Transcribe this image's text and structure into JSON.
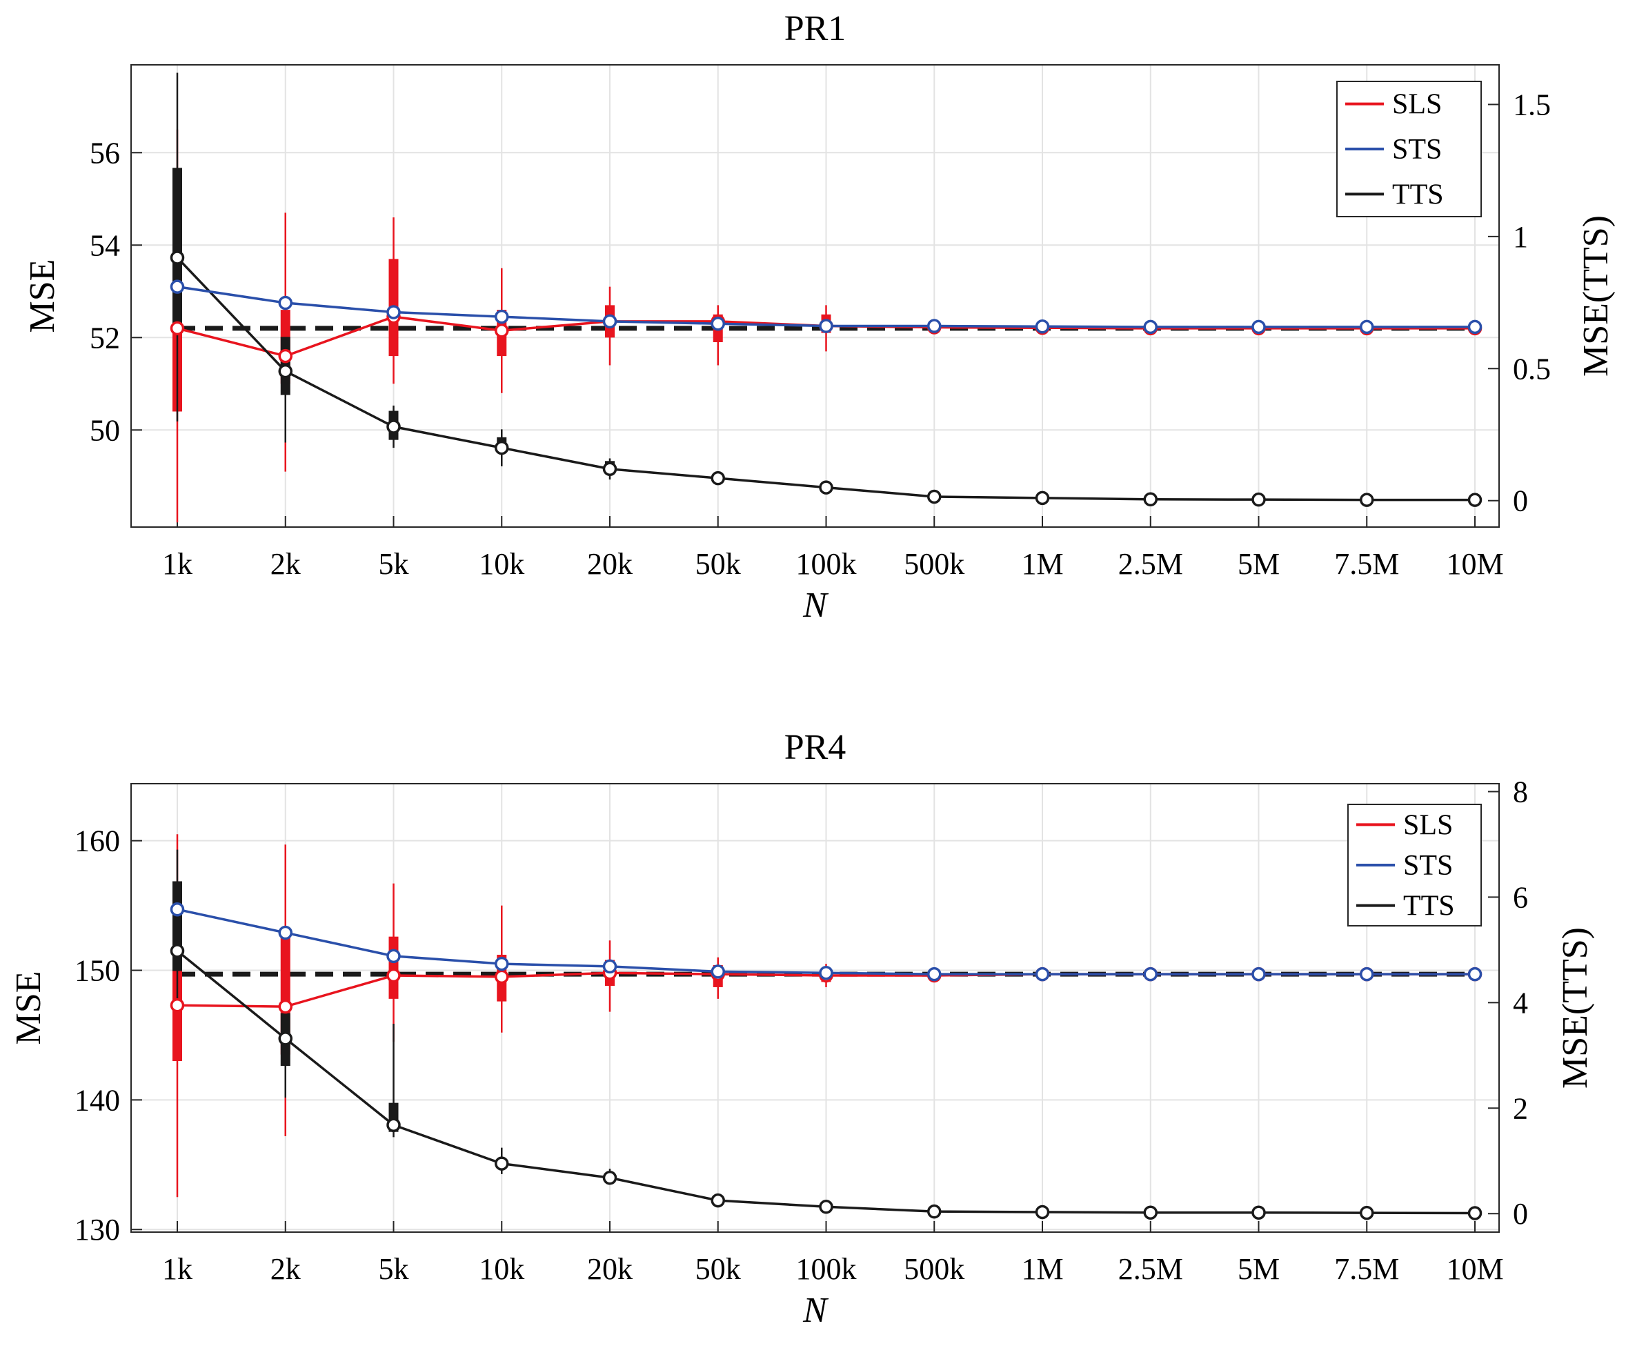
{
  "chart_data": [
    {
      "type": "line",
      "title": "PR1",
      "xlabel": "N",
      "ylabel": "MSE",
      "ylabel_right": "MSE(TTS)",
      "categories": [
        "1k",
        "2k",
        "5k",
        "10k",
        "20k",
        "50k",
        "100k",
        "500k",
        "1M",
        "2.5M",
        "5M",
        "7.5M",
        "10M"
      ],
      "ylim": [
        47.9,
        57.9
      ],
      "yticks": [
        50,
        52,
        54,
        56
      ],
      "ylim_right": [
        -0.1,
        1.65
      ],
      "yticks_right": [
        0,
        0.5,
        1,
        1.5
      ],
      "yticklabels_right": [
        "0",
        "0.5",
        "1",
        "1.5"
      ],
      "reference_line": 52.2,
      "grid": true,
      "legend_position": "top-right",
      "series": [
        {
          "name": "SLS",
          "color": "#e8141e",
          "axis": "left",
          "values": [
            52.2,
            51.6,
            52.45,
            52.15,
            52.35,
            52.35,
            52.25,
            52.22,
            52.21,
            52.2,
            52.2,
            52.2,
            52.2
          ],
          "whisker": [
            [
              48.0,
              56.5
            ],
            [
              49.1,
              54.7
            ],
            [
              51.0,
              54.6
            ],
            [
              50.8,
              53.5
            ],
            [
              51.4,
              53.1
            ],
            [
              51.4,
              52.7
            ],
            [
              51.7,
              52.7
            ],
            [
              52.1,
              52.3
            ],
            [
              52.15,
              52.25
            ],
            [
              52.15,
              52.25
            ],
            [
              52.15,
              52.25
            ],
            [
              52.15,
              52.25
            ],
            [
              52.15,
              52.25
            ]
          ],
          "box": [
            [
              50.4,
              53.3
            ],
            [
              51.0,
              52.6
            ],
            [
              51.6,
              53.7
            ],
            [
              51.6,
              52.6
            ],
            [
              52.0,
              52.7
            ],
            [
              51.9,
              52.5
            ],
            [
              52.1,
              52.5
            ],
            [
              52.15,
              52.3
            ],
            [
              52.18,
              52.24
            ],
            [
              52.18,
              52.24
            ],
            [
              52.18,
              52.24
            ],
            [
              52.18,
              52.24
            ],
            [
              52.18,
              52.24
            ]
          ]
        },
        {
          "name": "STS",
          "color": "#2a4faa",
          "axis": "left",
          "values": [
            53.1,
            52.75,
            52.55,
            52.45,
            52.35,
            52.3,
            52.25,
            52.25,
            52.24,
            52.23,
            52.23,
            52.23,
            52.23
          ],
          "whisker": [],
          "box": []
        },
        {
          "name": "TTS",
          "color": "#1a1a1a",
          "axis": "right",
          "values": [
            0.92,
            0.49,
            0.28,
            0.2,
            0.12,
            0.085,
            0.05,
            0.015,
            0.01,
            0.005,
            0.004,
            0.003,
            0.003
          ],
          "whisker": [
            [
              0.3,
              1.62
            ],
            [
              0.22,
              0.6
            ],
            [
              0.2,
              0.36
            ],
            [
              0.13,
              0.27
            ],
            [
              0.08,
              0.16
            ],
            [
              0.06,
              0.11
            ],
            [
              0.03,
              0.07
            ],
            [
              0.01,
              0.02
            ],
            [
              0.005,
              0.012
            ],
            [
              0.003,
              0.007
            ],
            [
              0.002,
              0.006
            ],
            [
              0.002,
              0.005
            ],
            [
              0.002,
              0.005
            ]
          ],
          "box": [
            [
              0.65,
              1.26
            ],
            [
              0.4,
              0.62
            ],
            [
              0.23,
              0.34
            ],
            [
              0.18,
              0.24
            ],
            [
              0.1,
              0.15
            ],
            [
              0.07,
              0.1
            ],
            [
              0.04,
              0.06
            ],
            [
              0.012,
              0.018
            ],
            [
              0.008,
              0.012
            ],
            [
              0.004,
              0.006
            ],
            [
              0.003,
              0.005
            ],
            [
              0.003,
              0.004
            ],
            [
              0.003,
              0.004
            ]
          ]
        }
      ]
    },
    {
      "type": "line",
      "title": "PR4",
      "xlabel": "N",
      "ylabel": "MSE",
      "ylabel_right": "MSE(TTS)",
      "categories": [
        "1k",
        "2k",
        "5k",
        "10k",
        "20k",
        "50k",
        "100k",
        "500k",
        "1M",
        "2.5M",
        "5M",
        "7.5M",
        "10M"
      ],
      "ylim": [
        129.8,
        164.4
      ],
      "yticks": [
        130,
        140,
        150,
        160
      ],
      "ylim_right": [
        -0.35,
        8.15
      ],
      "yticks_right": [
        0,
        2,
        4,
        6,
        8
      ],
      "yticklabels_right": [
        "0",
        "2",
        "4",
        "6",
        "8"
      ],
      "reference_line": 149.7,
      "grid": true,
      "legend_position": "top-right",
      "series": [
        {
          "name": "SLS",
          "color": "#e8141e",
          "axis": "left",
          "values": [
            147.3,
            147.2,
            149.6,
            149.5,
            149.8,
            149.7,
            149.6,
            149.6,
            149.7,
            149.7,
            149.7,
            149.7,
            149.7
          ],
          "whisker": [
            [
              132.5,
              160.5
            ],
            [
              137.2,
              159.7
            ],
            [
              144.5,
              156.7
            ],
            [
              145.2,
              155.0
            ],
            [
              146.8,
              152.3
            ],
            [
              147.8,
              151.0
            ],
            [
              148.7,
              150.5
            ],
            [
              149.3,
              150.0
            ],
            [
              149.5,
              149.9
            ],
            [
              149.6,
              149.8
            ],
            [
              149.6,
              149.8
            ],
            [
              149.6,
              149.8
            ],
            [
              149.6,
              149.8
            ]
          ],
          "box": [
            [
              143.0,
              151.5
            ],
            [
              143.5,
              153.0
            ],
            [
              147.8,
              152.6
            ],
            [
              147.6,
              151.2
            ],
            [
              148.8,
              150.8
            ],
            [
              148.7,
              150.4
            ],
            [
              149.1,
              150.2
            ],
            [
              149.4,
              149.9
            ],
            [
              149.6,
              149.8
            ],
            [
              149.62,
              149.78
            ],
            [
              149.62,
              149.78
            ],
            [
              149.62,
              149.78
            ],
            [
              149.62,
              149.78
            ]
          ]
        },
        {
          "name": "STS",
          "color": "#2a4faa",
          "axis": "left",
          "values": [
            154.7,
            152.9,
            151.1,
            150.5,
            150.3,
            149.9,
            149.8,
            149.7,
            149.7,
            149.7,
            149.7,
            149.7,
            149.7
          ],
          "whisker": [],
          "box": []
        },
        {
          "name": "TTS",
          "color": "#1a1a1a",
          "axis": "right",
          "values": [
            4.98,
            3.32,
            1.68,
            0.95,
            0.68,
            0.25,
            0.13,
            0.04,
            0.03,
            0.02,
            0.02,
            0.015,
            0.01
          ],
          "whisker": [
            [
              3.9,
              6.9
            ],
            [
              2.2,
              4.0
            ],
            [
              1.45,
              3.6
            ],
            [
              0.75,
              1.25
            ],
            [
              0.55,
              0.85
            ],
            [
              0.2,
              0.32
            ],
            [
              0.1,
              0.17
            ],
            [
              0.02,
              0.06
            ],
            [
              0.015,
              0.04
            ],
            [
              0.01,
              0.03
            ],
            [
              0.01,
              0.03
            ],
            [
              0.008,
              0.025
            ],
            [
              0.005,
              0.02
            ]
          ],
          "box": [
            [
              4.6,
              6.3
            ],
            [
              2.8,
              3.8
            ],
            [
              1.55,
              2.1
            ],
            [
              0.85,
              1.0
            ],
            [
              0.62,
              0.75
            ],
            [
              0.22,
              0.28
            ],
            [
              0.11,
              0.15
            ],
            [
              0.03,
              0.05
            ],
            [
              0.02,
              0.035
            ],
            [
              0.015,
              0.025
            ],
            [
              0.015,
              0.025
            ],
            [
              0.012,
              0.02
            ],
            [
              0.008,
              0.015
            ]
          ]
        }
      ]
    }
  ]
}
